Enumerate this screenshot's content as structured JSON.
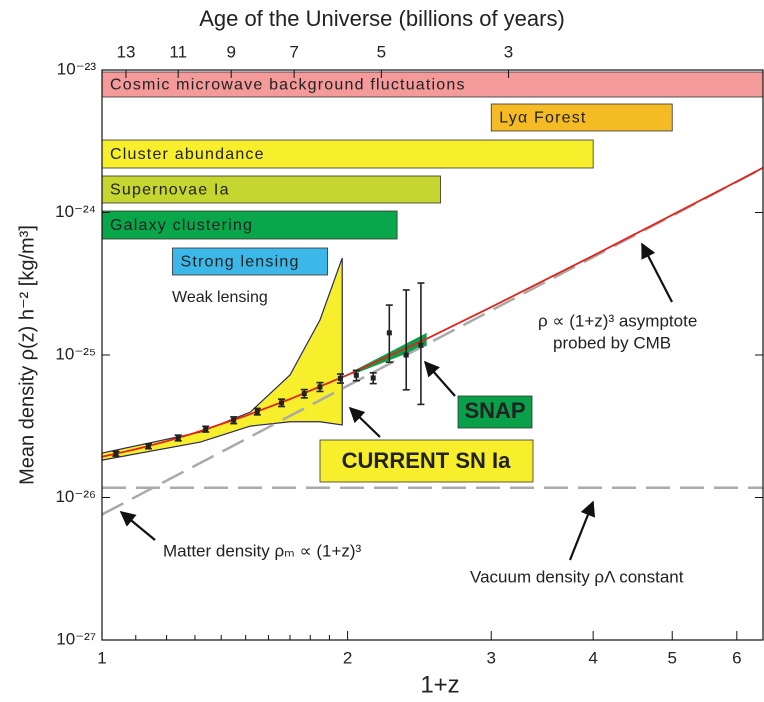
{
  "chart_data": {
    "type": "line",
    "x2label": "Age of the Universe (billions of years)",
    "xlabel": "1+z",
    "ylabel": "Mean density ρ(z) h⁻² [kg/m³]",
    "log_x": true,
    "log_y": true,
    "xlim": [
      1,
      6.46
    ],
    "ylim": [
      1e-27,
      1e-23
    ],
    "xticks": [
      1,
      2,
      3,
      4,
      5,
      6
    ],
    "xminor": [
      1.1,
      1.2,
      1.3,
      1.4,
      1.5,
      1.6,
      1.7,
      1.8,
      1.9
    ],
    "x2ticks": [
      {
        "value": 1.07,
        "label": "13"
      },
      {
        "value": 1.24,
        "label": "11"
      },
      {
        "value": 1.44,
        "label": "9"
      },
      {
        "value": 1.72,
        "label": "7"
      },
      {
        "value": 2.2,
        "label": "5"
      },
      {
        "value": 3.15,
        "label": "3"
      }
    ],
    "yticks": [
      {
        "value": 1e-27,
        "label": "10⁻²⁷"
      },
      {
        "value": 1e-26,
        "label": "10⁻²⁶"
      },
      {
        "value": 1e-25,
        "label": "10⁻²⁵"
      },
      {
        "value": 1e-24,
        "label": "10⁻²⁴"
      },
      {
        "value": 1e-23,
        "label": "10⁻²³"
      }
    ],
    "series": [
      {
        "color": "#aaaaaa",
        "dashed": true,
        "x": [
          1,
          6.46
        ],
        "values": [
          7.6e-27,
          2.05e-24
        ]
      },
      {
        "color": "#aaaaaa",
        "dashed": true,
        "x": [
          1,
          6.46
        ],
        "values": [
          1.17e-26,
          1.17e-26
        ]
      },
      {
        "color": "#e0241b",
        "dashed": false,
        "x": [
          1,
          1.1,
          1.2,
          1.3,
          1.5,
          1.7,
          2,
          2.5,
          3,
          4,
          5,
          6,
          6.46
        ],
        "values": [
          1.93e-26,
          2.18e-26,
          2.48e-26,
          2.84e-26,
          3.74e-26,
          4.9e-26,
          7.25e-26,
          1.3e-25,
          2.17e-25,
          4.98e-25,
          9.62e-25,
          1.65e-24,
          2.06e-24
        ]
      }
    ],
    "ranges": [
      {
        "label": "Cosmic microwave background fluctuations",
        "x": [
          1,
          6.46
        ],
        "color": "#f59a9a",
        "label_color": "#222222"
      },
      {
        "label": "Lyα Forest",
        "x": [
          3.0,
          5.0
        ],
        "color": "#f5bb24",
        "label_color": "#222222"
      },
      {
        "label": "Cluster abundance",
        "x": [
          1,
          4.0
        ],
        "color": "#f7ee2c",
        "label_color": "#222222"
      },
      {
        "label": "Supernovae Ia",
        "x": [
          1,
          2.6
        ],
        "color": "#c5d631",
        "label_color": "#222222"
      },
      {
        "label": "Galaxy clustering",
        "x": [
          1,
          2.3
        ],
        "color": "#0aa64a",
        "label_color": "#ffffff"
      },
      {
        "label": "Strong lensing",
        "x": [
          1.22,
          1.89
        ],
        "color": "#3bb8e8",
        "label_color": "#222222"
      }
    ],
    "regions": [
      {
        "color": "#f7ee2c",
        "x": [
          1,
          1.32,
          1.52,
          1.7,
          1.85,
          1.97
        ],
        "upper": [
          2.05e-26,
          2.88e-26,
          3.98e-26,
          7.24e-26,
          1.76e-25,
          4.79e-25
        ],
        "lower": [
          1.83e-26,
          2.45e-26,
          3.17e-26,
          3.4e-26,
          3.4e-26,
          3.23e-26
        ]
      },
      {
        "color": "#0aa04a",
        "x": [
          2.03,
          2.5
        ],
        "upper": [
          7.7e-26,
          1.43e-25
        ],
        "lower": [
          7.3e-26,
          1.16e-25
        ]
      }
    ],
    "points": {
      "x": [
        1.04,
        1.14,
        1.24,
        1.34,
        1.45,
        1.55,
        1.66,
        1.77,
        1.85,
        1.96,
        2.05,
        2.15,
        2.25,
        2.36,
        2.46
      ],
      "values": [
        2.03e-26,
        2.29e-26,
        2.62e-26,
        3.02e-26,
        3.49e-26,
        4.01e-26,
        4.62e-26,
        5.36e-26,
        5.97e-26,
        6.85e-26,
        7.2e-26,
        6.9e-26,
        1.43e-25,
        1e-25,
        1.17e-25
      ],
      "low": [
        1.95e-26,
        2.2e-26,
        2.5e-26,
        2.88e-26,
        3.3e-26,
        3.8e-26,
        4.35e-26,
        5e-26,
        5.55e-26,
        6.35e-26,
        6.6e-26,
        6.3e-26,
        8.9e-26,
        5.7e-26,
        4.5e-26
      ],
      "high": [
        2.11e-26,
        2.38e-26,
        2.74e-26,
        3.16e-26,
        3.68e-26,
        4.22e-26,
        4.9e-26,
        5.72e-26,
        6.4e-26,
        7.35e-26,
        7.8e-26,
        7.5e-26,
        2.24e-25,
        2.86e-25,
        3.2e-25
      ]
    },
    "annotations": [
      {
        "text": "Weak lensing"
      },
      {
        "text": "ρ ∝ (1+z)³ asymptote"
      },
      {
        "text": "probed by CMB"
      },
      {
        "text": "SNAP",
        "box_color": "#0aa04a",
        "text_color": "#ffffff"
      },
      {
        "text": "CURRENT SN Ia",
        "box_color": "#f7ee2c",
        "text_color": "#111111"
      },
      {
        "text": "Matter density ρₘ ∝ (1+z)³"
      },
      {
        "text": "Vacuum density ρΛ constant"
      }
    ]
  }
}
